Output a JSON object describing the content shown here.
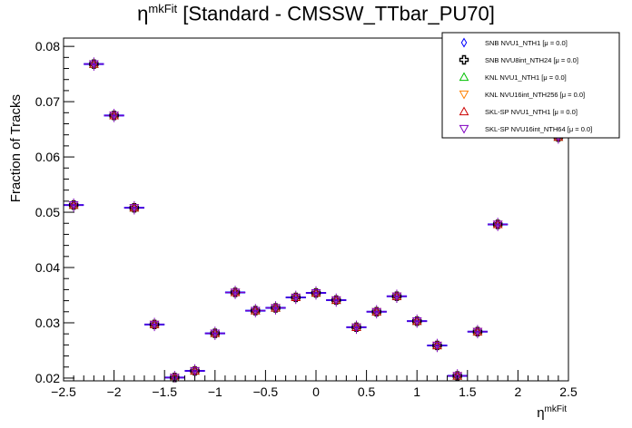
{
  "chart_data": {
    "type": "scatter",
    "title_symbol": "η",
    "title_sup": "mkFit",
    "title_text": " [Standard - CMSSW_TTbar_PU70]",
    "xlabel_symbol": "η",
    "xlabel_sup": "mkFit",
    "ylabel": "Fraction of Tracks",
    "xlim": [
      -2.5,
      2.5
    ],
    "ylim": [
      0.0195,
      0.0815
    ],
    "x_ticks": [
      -2.5,
      -2,
      -1.5,
      -1,
      -0.5,
      0,
      0.5,
      1,
      1.5,
      2,
      2.5
    ],
    "x_tick_labels": [
      "−2.5",
      "−2",
      "−1.5",
      "−1",
      "−0.5",
      "0",
      "0.5",
      "1",
      "1.5",
      "2",
      "2.5"
    ],
    "y_ticks": [
      0.02,
      0.03,
      0.04,
      0.05,
      0.06,
      0.07,
      0.08
    ],
    "y_tick_labels": [
      "0.02",
      "0.03",
      "0.04",
      "0.05",
      "0.06",
      "0.07",
      "0.08"
    ],
    "x_bin_half_width": 0.1,
    "y_error": 0.0012,
    "x": [
      -2.4,
      -2.2,
      -2.0,
      -1.8,
      -1.6,
      -1.4,
      -1.2,
      -1.0,
      -0.8,
      -0.6,
      -0.4,
      -0.2,
      0.0,
      0.2,
      0.4,
      0.6,
      0.8,
      1.0,
      1.2,
      1.4,
      1.6,
      1.8,
      2.4
    ],
    "y": [
      0.0513,
      0.0768,
      0.0675,
      0.0508,
      0.0297,
      0.0201,
      0.0213,
      0.0281,
      0.0355,
      0.0322,
      0.0327,
      0.0346,
      0.0354,
      0.0341,
      0.0292,
      0.032,
      0.0348,
      0.0303,
      0.0259,
      0.0204,
      0.0284,
      0.0478,
      0.0636
    ],
    "series": [
      {
        "name": "SNB NVU1_NTH1 [μ =  0.0]",
        "color": "#0000ff",
        "marker": "diamond"
      },
      {
        "name": "SNB NVU8int_NTH24 [μ =  0.0]",
        "color": "#000000",
        "marker": "cross"
      },
      {
        "name": "KNL NVU1_NTH1 [μ =  0.0]",
        "color": "#00c000",
        "marker": "triangle-up"
      },
      {
        "name": "KNL NVU16int_NTH256 [μ =  0.0]",
        "color": "#ff8000",
        "marker": "triangle-down"
      },
      {
        "name": "SKL-SP NVU1_NTH1 [μ =  0.0]",
        "color": "#cc0000",
        "marker": "triangle-up"
      },
      {
        "name": "SKL-SP NVU16int_NTH64 [μ =  0.0]",
        "color": "#8000c0",
        "marker": "triangle-down"
      }
    ],
    "legend_position": "top-right",
    "grid": false
  }
}
